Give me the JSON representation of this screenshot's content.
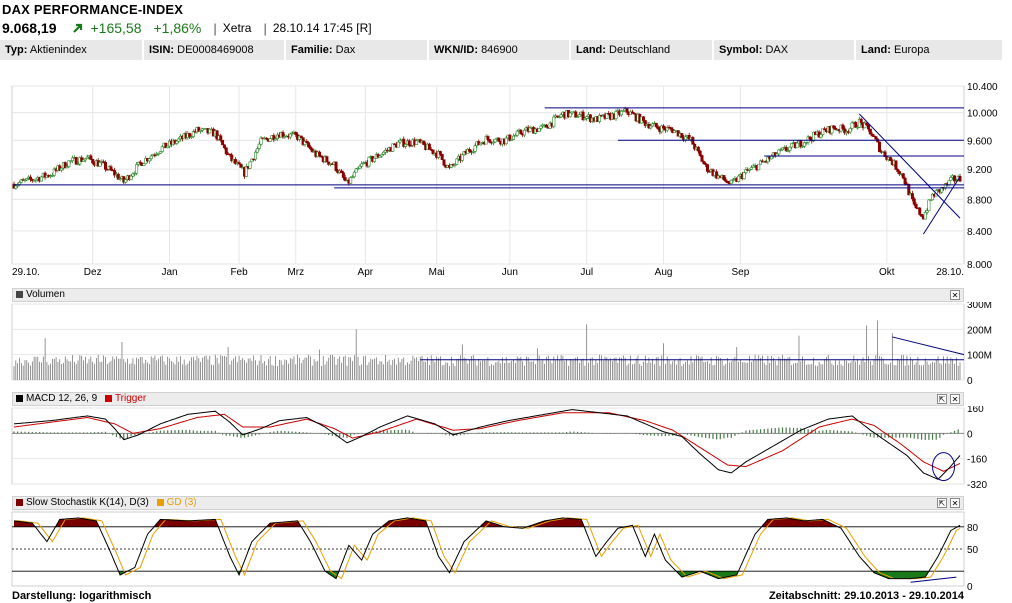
{
  "header": {
    "title": "DAX PERFORMANCE-INDEX",
    "price": "9.068,19",
    "change": "+165,58",
    "change_pct": "+1,86%",
    "exchange": "Xetra",
    "timestamp": "28.10.14 17:45 [R]",
    "trend_icon": "arrow-up-right-icon",
    "up_color": "#1a7a1a"
  },
  "info_bar": [
    {
      "label": "Typ:",
      "value": "Aktienindex"
    },
    {
      "label": "ISIN:",
      "value": "DE0008469008"
    },
    {
      "label": "Familie:",
      "value": "Dax"
    },
    {
      "label": "WKN/ID:",
      "value": "846900"
    },
    {
      "label": "Land:",
      "value": "Deutschland"
    },
    {
      "label": "Symbol:",
      "value": "DAX"
    },
    {
      "label": "Land:",
      "value": "Europa"
    }
  ],
  "panels": {
    "volume": {
      "label": "Volumen",
      "close_icon": "close-icon"
    },
    "macd": {
      "label": "MACD 12, 26, 9",
      "trigger_label": "Trigger",
      "buttons": [
        "expand-icon",
        "close-icon"
      ]
    },
    "stoch": {
      "label": "Slow Stochastik K(14), D(3)",
      "gd_label": "GD (3)",
      "buttons": [
        "expand-icon",
        "close-icon"
      ]
    }
  },
  "footer": {
    "darstellung": "Darstellung: logarithmisch",
    "zeitabschnitt": "Zeitabschnitt: 29.10.2013 - 29.10.2014"
  },
  "chart_data": [
    {
      "type": "candlestick",
      "title": "",
      "scale": "log",
      "x_tick_labels": [
        "29.10.",
        "Dez",
        "Jan",
        "Feb",
        "Mrz",
        "Apr",
        "Mai",
        "Jun",
        "Jul",
        "Aug",
        "Sep",
        "Okt",
        "28.10."
      ],
      "y_tick_labels": [
        "10.400",
        "10.000",
        "9.600",
        "9.200",
        "8.800",
        "8.400",
        "8.000"
      ],
      "ylim": [
        8000,
        10400
      ],
      "up_color": "#2a8a2a",
      "down_color": "#8b0000",
      "trend_line_color": "#000080",
      "close_path": [
        [
          0,
          9000
        ],
        [
          10,
          9060
        ],
        [
          20,
          9130
        ],
        [
          30,
          9300
        ],
        [
          40,
          9350
        ],
        [
          48,
          9260
        ],
        [
          55,
          9140
        ],
        [
          60,
          9030
        ],
        [
          70,
          9300
        ],
        [
          80,
          9480
        ],
        [
          90,
          9600
        ],
        [
          100,
          9740
        ],
        [
          110,
          9700
        ],
        [
          118,
          9350
        ],
        [
          126,
          9150
        ],
        [
          135,
          9580
        ],
        [
          145,
          9700
        ],
        [
          155,
          9650
        ],
        [
          165,
          9400
        ],
        [
          175,
          9260
        ],
        [
          182,
          9000
        ],
        [
          190,
          9250
        ],
        [
          200,
          9400
        ],
        [
          210,
          9560
        ],
        [
          220,
          9580
        ],
        [
          232,
          9400
        ],
        [
          238,
          9200
        ],
        [
          248,
          9450
        ],
        [
          258,
          9620
        ],
        [
          268,
          9600
        ],
        [
          280,
          9740
        ],
        [
          290,
          9780
        ],
        [
          300,
          9980
        ],
        [
          310,
          9960
        ],
        [
          318,
          9900
        ],
        [
          328,
          9960
        ],
        [
          335,
          10020
        ],
        [
          345,
          9850
        ],
        [
          352,
          9780
        ],
        [
          360,
          9750
        ],
        [
          370,
          9600
        ],
        [
          378,
          9230
        ],
        [
          385,
          9100
        ],
        [
          392,
          9000
        ],
        [
          400,
          9160
        ],
        [
          410,
          9300
        ],
        [
          420,
          9450
        ],
        [
          430,
          9560
        ],
        [
          440,
          9700
        ],
        [
          448,
          9780
        ],
        [
          455,
          9750
        ],
        [
          462,
          9860
        ],
        [
          468,
          9720
        ],
        [
          474,
          9450
        ],
        [
          480,
          9300
        ],
        [
          486,
          9100
        ],
        [
          492,
          8700
        ],
        [
          497,
          8580
        ],
        [
          502,
          8850
        ],
        [
          508,
          8950
        ],
        [
          513,
          9060
        ],
        [
          517,
          9070
        ]
      ],
      "horizontal_levels": [
        10070,
        9600,
        9380,
        8990,
        8950
      ],
      "trend_lines": [
        {
          "from": [
            462,
            9980
          ],
          "to": [
            517,
            8560
          ]
        },
        {
          "from": [
            497,
            8360
          ],
          "to": [
            517,
            9100
          ]
        }
      ]
    },
    {
      "type": "bar",
      "title": "Volumen",
      "y_tick_labels": [
        "300M",
        "200M",
        "100M",
        "0"
      ],
      "ylim": [
        0,
        300
      ],
      "unit": "M",
      "avg_level": 80,
      "spikes": [
        {
          "i": 17,
          "v": 165
        },
        {
          "i": 59,
          "v": 150
        },
        {
          "i": 117,
          "v": 130
        },
        {
          "i": 167,
          "v": 120
        },
        {
          "i": 187,
          "v": 200
        },
        {
          "i": 245,
          "v": 140
        },
        {
          "i": 286,
          "v": 125
        },
        {
          "i": 313,
          "v": 220
        },
        {
          "i": 355,
          "v": 145
        },
        {
          "i": 395,
          "v": 130
        },
        {
          "i": 429,
          "v": 175
        },
        {
          "i": 466,
          "v": 215
        },
        {
          "i": 472,
          "v": 235
        },
        {
          "i": 480,
          "v": 185
        }
      ]
    },
    {
      "type": "line",
      "title": "MACD 12, 26, 9",
      "series": [
        {
          "name": "MACD 12, 26, 9",
          "color": "#000000"
        },
        {
          "name": "Trigger",
          "color": "#cc0000"
        }
      ],
      "histogram_color": "#4a7a4a",
      "y_tick_labels": [
        "160",
        "0",
        "-160",
        "-320"
      ],
      "ylim": [
        -320,
        160
      ],
      "macd_path": [
        [
          0,
          60
        ],
        [
          20,
          80
        ],
        [
          40,
          110
        ],
        [
          50,
          90
        ],
        [
          55,
          30
        ],
        [
          60,
          -40
        ],
        [
          68,
          -10
        ],
        [
          80,
          60
        ],
        [
          95,
          120
        ],
        [
          110,
          140
        ],
        [
          118,
          70
        ],
        [
          125,
          -10
        ],
        [
          135,
          30
        ],
        [
          145,
          80
        ],
        [
          160,
          100
        ],
        [
          170,
          40
        ],
        [
          182,
          -60
        ],
        [
          190,
          -20
        ],
        [
          200,
          40
        ],
        [
          215,
          110
        ],
        [
          230,
          60
        ],
        [
          240,
          -10
        ],
        [
          255,
          40
        ],
        [
          270,
          80
        ],
        [
          290,
          120
        ],
        [
          305,
          150
        ],
        [
          320,
          130
        ],
        [
          335,
          110
        ],
        [
          345,
          60
        ],
        [
          355,
          10
        ],
        [
          365,
          -20
        ],
        [
          375,
          -130
        ],
        [
          385,
          -230
        ],
        [
          392,
          -250
        ],
        [
          400,
          -180
        ],
        [
          415,
          -80
        ],
        [
          430,
          20
        ],
        [
          445,
          90
        ],
        [
          458,
          110
        ],
        [
          468,
          20
        ],
        [
          478,
          -60
        ],
        [
          488,
          -140
        ],
        [
          497,
          -250
        ],
        [
          505,
          -290
        ],
        [
          511,
          -220
        ],
        [
          517,
          -140
        ]
      ],
      "trigger_path": [
        [
          0,
          40
        ],
        [
          20,
          70
        ],
        [
          40,
          100
        ],
        [
          55,
          60
        ],
        [
          65,
          0
        ],
        [
          80,
          30
        ],
        [
          100,
          100
        ],
        [
          115,
          120
        ],
        [
          125,
          40
        ],
        [
          140,
          40
        ],
        [
          160,
          90
        ],
        [
          175,
          30
        ],
        [
          185,
          -30
        ],
        [
          200,
          10
        ],
        [
          220,
          90
        ],
        [
          240,
          20
        ],
        [
          255,
          30
        ],
        [
          275,
          80
        ],
        [
          300,
          130
        ],
        [
          325,
          130
        ],
        [
          345,
          80
        ],
        [
          360,
          20
        ],
        [
          375,
          -90
        ],
        [
          390,
          -200
        ],
        [
          400,
          -210
        ],
        [
          420,
          -110
        ],
        [
          440,
          40
        ],
        [
          458,
          90
        ],
        [
          470,
          50
        ],
        [
          485,
          -70
        ],
        [
          497,
          -180
        ],
        [
          508,
          -240
        ],
        [
          517,
          -190
        ]
      ]
    },
    {
      "type": "area",
      "title": "Slow Stochastik K(14), D(3)",
      "series": [
        {
          "name": "Slow Stochastik K(14), D(3)",
          "color": "#000000"
        },
        {
          "name": "GD (3)",
          "color": "#e8a000"
        }
      ],
      "y_tick_labels": [
        "80",
        "50",
        "0"
      ],
      "ylim": [
        0,
        100
      ],
      "overbought": 80,
      "oversold": 20,
      "overbought_fill": "#7a0000",
      "oversold_fill": "#1a7a1a",
      "k_path": [
        [
          0,
          88
        ],
        [
          10,
          85
        ],
        [
          18,
          60
        ],
        [
          25,
          90
        ],
        [
          35,
          92
        ],
        [
          45,
          88
        ],
        [
          52,
          50
        ],
        [
          58,
          15
        ],
        [
          66,
          25
        ],
        [
          73,
          70
        ],
        [
          80,
          90
        ],
        [
          95,
          88
        ],
        [
          110,
          90
        ],
        [
          118,
          40
        ],
        [
          123,
          15
        ],
        [
          130,
          60
        ],
        [
          140,
          85
        ],
        [
          155,
          88
        ],
        [
          162,
          60
        ],
        [
          170,
          20
        ],
        [
          176,
          10
        ],
        [
          183,
          55
        ],
        [
          190,
          35
        ],
        [
          196,
          70
        ],
        [
          205,
          88
        ],
        [
          215,
          92
        ],
        [
          225,
          88
        ],
        [
          232,
          40
        ],
        [
          238,
          18
        ],
        [
          246,
          60
        ],
        [
          258,
          88
        ],
        [
          268,
          80
        ],
        [
          278,
          78
        ],
        [
          290,
          88
        ],
        [
          300,
          92
        ],
        [
          310,
          90
        ],
        [
          318,
          40
        ],
        [
          324,
          60
        ],
        [
          330,
          78
        ],
        [
          338,
          82
        ],
        [
          345,
          40
        ],
        [
          350,
          70
        ],
        [
          356,
          35
        ],
        [
          365,
          12
        ],
        [
          375,
          20
        ],
        [
          385,
          10
        ],
        [
          395,
          15
        ],
        [
          405,
          70
        ],
        [
          412,
          90
        ],
        [
          422,
          92
        ],
        [
          432,
          88
        ],
        [
          442,
          90
        ],
        [
          452,
          78
        ],
        [
          462,
          40
        ],
        [
          470,
          18
        ],
        [
          478,
          10
        ],
        [
          490,
          10
        ],
        [
          498,
          12
        ],
        [
          505,
          40
        ],
        [
          512,
          75
        ],
        [
          517,
          82
        ]
      ]
    }
  ]
}
